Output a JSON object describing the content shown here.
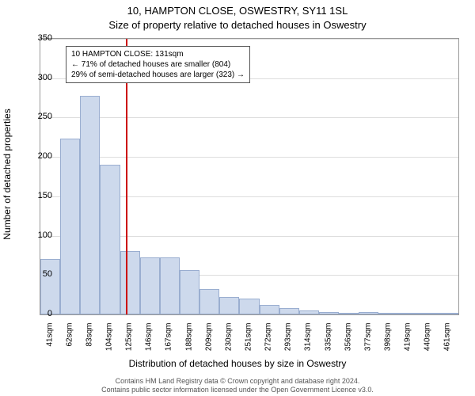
{
  "titles": {
    "line1": "10, HAMPTON CLOSE, OSWESTRY, SY11 1SL",
    "line2": "Size of property relative to detached houses in Oswestry"
  },
  "chart": {
    "type": "histogram",
    "ylabel": "Number of detached properties",
    "xlabel": "Distribution of detached houses by size in Oswestry",
    "background_color": "#ffffff",
    "grid_color": "#dddddd",
    "axis_color": "#999999",
    "bar_fill": "#cdd9ec",
    "bar_stroke": "#9aaed0",
    "marker_color": "#cc0000",
    "ylim": [
      0,
      350
    ],
    "ytick_step": 50,
    "yticks": [
      "0",
      "50",
      "100",
      "150",
      "200",
      "250",
      "300",
      "350"
    ],
    "categories": [
      "41sqm",
      "62sqm",
      "83sqm",
      "104sqm",
      "125sqm",
      "146sqm",
      "167sqm",
      "188sqm",
      "209sqm",
      "230sqm",
      "251sqm",
      "272sqm",
      "293sqm",
      "314sqm",
      "335sqm",
      "356sqm",
      "377sqm",
      "398sqm",
      "419sqm",
      "440sqm",
      "461sqm"
    ],
    "values": [
      70,
      223,
      278,
      190,
      80,
      72,
      72,
      56,
      32,
      22,
      20,
      12,
      8,
      5,
      3,
      2,
      3,
      2,
      2,
      1,
      1
    ],
    "bar_width_ratio": 1.0,
    "marker_category_index": 4,
    "marker_fraction_into_bin": 0.3
  },
  "annotation": {
    "line1": "10 HAMPTON CLOSE: 131sqm",
    "line2": "← 71% of detached houses are smaller (804)",
    "line3": "29% of semi-detached houses are larger (323) →",
    "border_color": "#555555",
    "text_color": "#000000"
  },
  "footer": {
    "line1": "Contains HM Land Registry data © Crown copyright and database right 2024.",
    "line2": "Contains public sector information licensed under the Open Government Licence v3.0."
  }
}
